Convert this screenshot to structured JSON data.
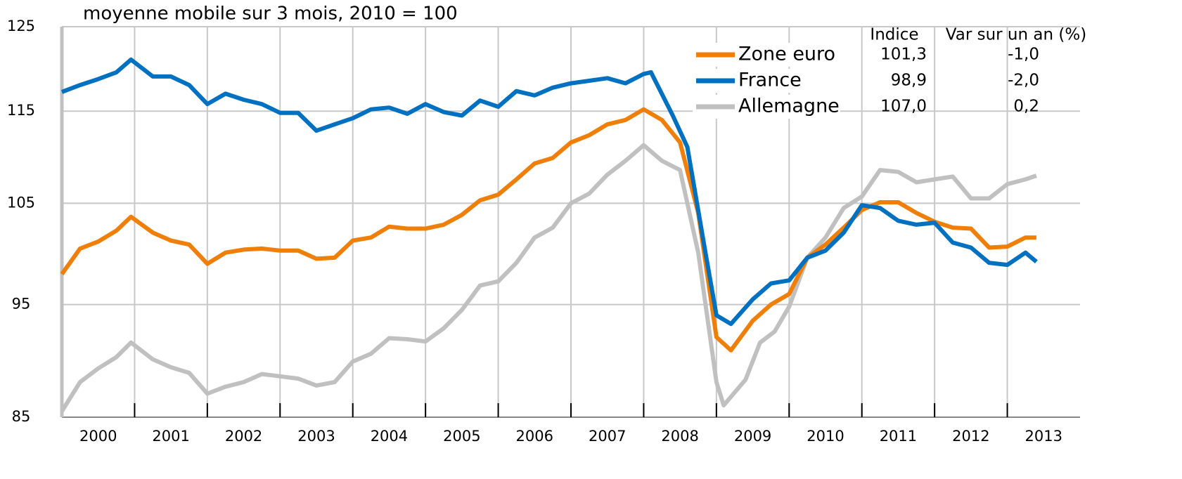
{
  "chart_data": {
    "type": "line",
    "subtitle": "moyenne mobile sur 3 mois, 2010 = 100",
    "log_scale": true,
    "grid": true,
    "legend_position": "upper right",
    "xlim": [
      2000,
      2014
    ],
    "xticks": [
      2001,
      2002,
      2003,
      2004,
      2005,
      2006,
      2007,
      2008,
      2009,
      2010,
      2011,
      2012,
      2013
    ],
    "year_labels": [
      "2000",
      "2001",
      "2002",
      "2003",
      "2004",
      "2005",
      "2006",
      "2007",
      "2008",
      "2009",
      "2010",
      "2011",
      "2012",
      "2013"
    ],
    "ylim": [
      85,
      125
    ],
    "yticks": [
      85,
      95,
      105,
      115,
      125
    ],
    "legend_table": {
      "headers": [
        "Indice",
        "Var sur un an (%)"
      ],
      "rows": [
        [
          "101,3",
          "-1,0"
        ],
        [
          "98,9",
          "-2,0"
        ],
        [
          "107,0",
          "0,2"
        ]
      ]
    },
    "series": [
      {
        "name": "Zone euro",
        "color": "#f07f09",
        "x": [
          2000.0,
          2000.25,
          2000.5,
          2000.75,
          2000.95,
          2001.25,
          2001.5,
          2001.75,
          2002.0,
          2002.25,
          2002.5,
          2002.75,
          2003.0,
          2003.25,
          2003.5,
          2003.75,
          2004.0,
          2004.25,
          2004.5,
          2004.75,
          2005.0,
          2005.25,
          2005.5,
          2005.75,
          2006.0,
          2006.25,
          2006.5,
          2006.75,
          2007.0,
          2007.25,
          2007.5,
          2007.75,
          2008.0,
          2008.25,
          2008.5,
          2008.75,
          2009.0,
          2009.2,
          2009.5,
          2009.75,
          2010.0,
          2010.25,
          2010.5,
          2010.75,
          2011.0,
          2011.25,
          2011.5,
          2011.75,
          2012.0,
          2012.25,
          2012.5,
          2012.75,
          2013.0,
          2013.25,
          2013.4
        ],
        "values": [
          97.9,
          100.4,
          101.1,
          102.2,
          103.6,
          102.0,
          101.2,
          100.8,
          98.9,
          100.0,
          100.3,
          100.4,
          100.2,
          100.2,
          99.4,
          99.5,
          101.2,
          101.5,
          102.6,
          102.4,
          102.4,
          102.8,
          103.8,
          105.3,
          105.9,
          107.5,
          109.2,
          109.8,
          111.5,
          112.3,
          113.5,
          114.0,
          115.2,
          114.0,
          111.5,
          104.0,
          92.0,
          90.8,
          93.5,
          95.0,
          96.0,
          99.5,
          100.8,
          102.5,
          104.3,
          105.1,
          105.1,
          104.0,
          103.1,
          102.5,
          102.4,
          100.5,
          100.6,
          101.5,
          101.5
        ]
      },
      {
        "name": "France",
        "color": "#0070c0",
        "x": [
          2000.0,
          2000.25,
          2000.5,
          2000.75,
          2000.95,
          2001.25,
          2001.5,
          2001.75,
          2002.0,
          2002.25,
          2002.5,
          2002.75,
          2003.0,
          2003.25,
          2003.5,
          2003.75,
          2004.0,
          2004.25,
          2004.5,
          2004.75,
          2005.0,
          2005.25,
          2005.5,
          2005.75,
          2006.0,
          2006.25,
          2006.5,
          2006.75,
          2007.0,
          2007.25,
          2007.5,
          2007.75,
          2008.0,
          2008.1,
          2008.4,
          2008.6,
          2008.85,
          2009.0,
          2009.2,
          2009.5,
          2009.75,
          2010.0,
          2010.25,
          2010.5,
          2010.75,
          2011.0,
          2011.25,
          2011.5,
          2011.75,
          2012.0,
          2012.25,
          2012.5,
          2012.75,
          2013.0,
          2013.25,
          2013.4
        ],
        "values": [
          117.2,
          118.0,
          118.7,
          119.5,
          121.0,
          119.0,
          119.0,
          118.0,
          115.8,
          117.0,
          116.3,
          115.8,
          114.8,
          114.8,
          112.8,
          113.5,
          114.2,
          115.2,
          115.4,
          114.7,
          115.8,
          114.9,
          114.5,
          116.2,
          115.5,
          117.3,
          116.8,
          117.7,
          118.2,
          118.5,
          118.8,
          118.2,
          119.3,
          119.5,
          114.5,
          111.0,
          100.0,
          94.0,
          93.2,
          95.5,
          97.0,
          97.3,
          99.5,
          100.2,
          102.0,
          104.8,
          104.5,
          103.2,
          102.8,
          103.0,
          101.0,
          100.5,
          99.0,
          98.8,
          100.0,
          99.1
        ]
      },
      {
        "name": "Allemagne",
        "color": "#c0c0c0",
        "x": [
          2000.0,
          2000.25,
          2000.5,
          2000.75,
          2000.95,
          2001.25,
          2001.5,
          2001.75,
          2002.0,
          2002.25,
          2002.5,
          2002.75,
          2003.0,
          2003.25,
          2003.5,
          2003.75,
          2004.0,
          2004.25,
          2004.5,
          2004.75,
          2005.0,
          2005.25,
          2005.5,
          2005.75,
          2006.0,
          2006.25,
          2006.5,
          2006.75,
          2007.0,
          2007.25,
          2007.5,
          2007.75,
          2008.0,
          2008.25,
          2008.5,
          2008.75,
          2009.0,
          2009.1,
          2009.4,
          2009.6,
          2009.8,
          2010.0,
          2010.25,
          2010.5,
          2010.75,
          2011.0,
          2011.25,
          2011.5,
          2011.75,
          2012.0,
          2012.25,
          2012.5,
          2012.75,
          2013.0,
          2013.25,
          2013.4
        ],
        "values": [
          85.5,
          88.0,
          89.2,
          90.2,
          91.5,
          90.0,
          89.3,
          88.8,
          87.0,
          87.6,
          88.0,
          88.7,
          88.5,
          88.3,
          87.7,
          88.0,
          89.8,
          90.5,
          91.9,
          91.8,
          91.6,
          92.8,
          94.5,
          96.8,
          97.2,
          99.0,
          101.5,
          102.5,
          105.0,
          106.0,
          108.0,
          109.5,
          111.2,
          109.5,
          108.5,
          100.0,
          88.0,
          86.0,
          88.2,
          91.5,
          92.5,
          94.8,
          99.5,
          101.5,
          104.5,
          105.7,
          108.5,
          108.3,
          107.2,
          107.5,
          107.8,
          105.5,
          105.5,
          107.0,
          107.5,
          107.9
        ]
      }
    ]
  }
}
